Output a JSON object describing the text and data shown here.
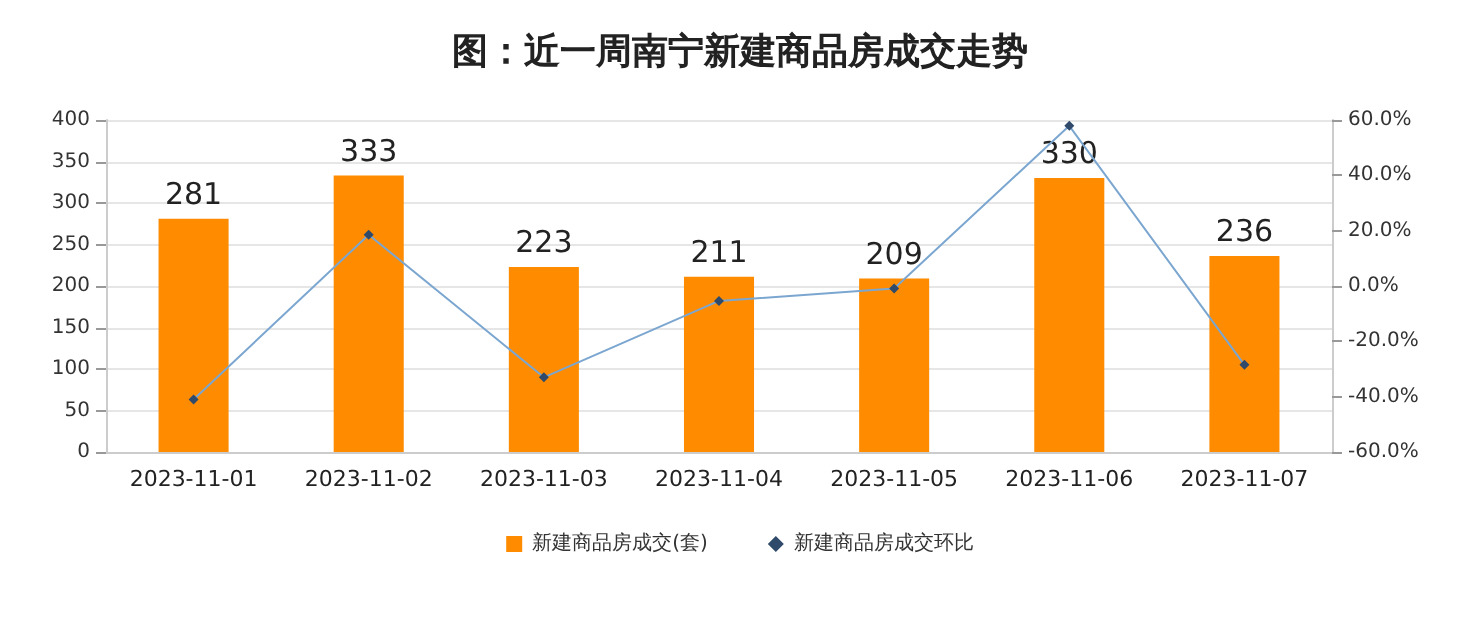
{
  "chart_data": {
    "type": "bar",
    "title": "图：近一周南宁新建商品房成交走势",
    "categories": [
      "2023-11-01",
      "2023-11-02",
      "2023-11-03",
      "2023-11-04",
      "2023-11-05",
      "2023-11-06",
      "2023-11-07"
    ],
    "series": [
      {
        "name": "新建商品房成交(套)",
        "color": "#ff8c00",
        "values": [
          281,
          333,
          223,
          211,
          209,
          330,
          236
        ],
        "data_labels": true
      },
      {
        "name": "新建商品房成交环比",
        "type": "line",
        "axis": "y2",
        "color": "#7ba6d0",
        "marker": "diamond",
        "values": [
          -41,
          18.5,
          -33,
          -5.4,
          -0.9,
          57.9,
          -28.5
        ]
      }
    ],
    "ylim": [
      0,
      400
    ],
    "yticks": [
      0,
      50,
      100,
      150,
      200,
      250,
      300,
      350,
      400
    ],
    "y2lim": [
      -60,
      60
    ],
    "y2ticks": [
      {
        "value": -60,
        "label": "-60.0%"
      },
      {
        "value": -40,
        "label": "-40.0%"
      },
      {
        "value": -20,
        "label": "-20.0%"
      },
      {
        "value": 0,
        "label": "0.0%"
      },
      {
        "value": 20,
        "label": "20.0%"
      },
      {
        "value": 40,
        "label": "40.0%"
      },
      {
        "value": 60,
        "label": "60.0%"
      }
    ],
    "grid": "y",
    "legend": "bottom"
  }
}
